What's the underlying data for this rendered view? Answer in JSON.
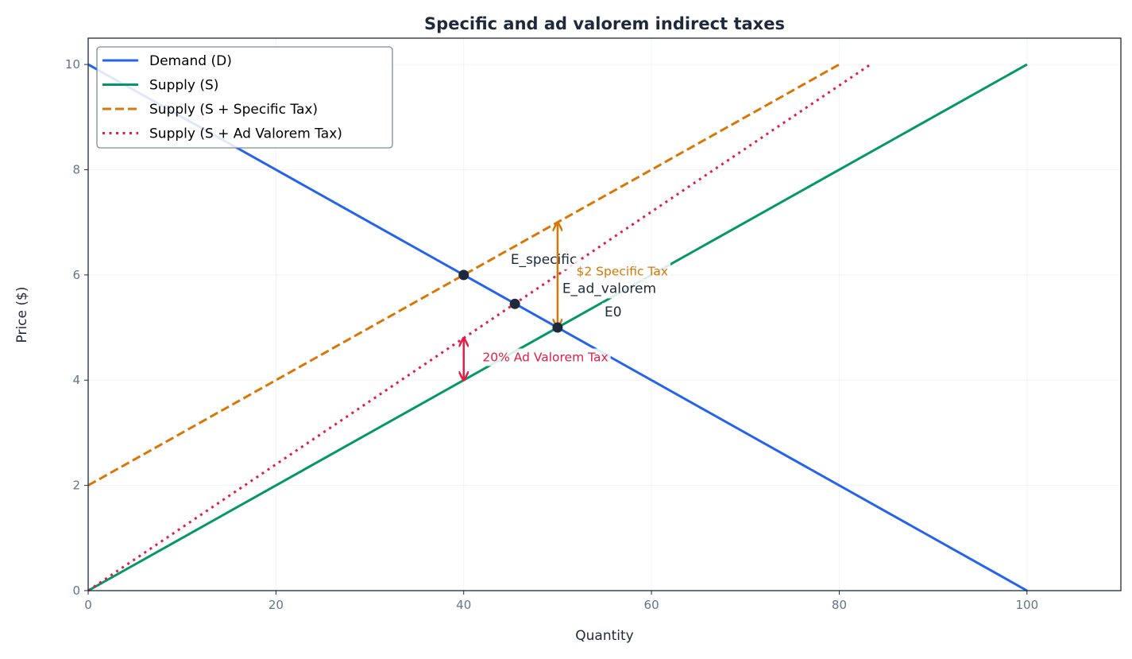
{
  "chart_data": {
    "type": "line",
    "title": "Specific and ad valorem indirect taxes",
    "xlabel": "Quantity",
    "ylabel": "Price ($)",
    "xlim": [
      0,
      110
    ],
    "ylim": [
      0,
      10.5
    ],
    "xticks": [
      0,
      20,
      40,
      60,
      80,
      100
    ],
    "yticks": [
      0,
      2,
      4,
      6,
      8,
      10
    ],
    "grid": true,
    "legend_position": "top-left",
    "series": [
      {
        "name": "Demand (D)",
        "color": "#2563eb",
        "style": "solid",
        "x": [
          0,
          100
        ],
        "y": [
          10,
          0
        ]
      },
      {
        "name": "Supply (S)",
        "color": "#059669",
        "style": "solid",
        "x": [
          0,
          100
        ],
        "y": [
          0,
          10
        ]
      },
      {
        "name": "Supply (S + Specific Tax)",
        "color": "#d97706",
        "style": "dashed",
        "x": [
          0,
          80
        ],
        "y": [
          2,
          10
        ]
      },
      {
        "name": "Supply (S + Ad Valorem Tax)",
        "color": "#e11d48",
        "style": "dotted",
        "x": [
          0,
          83.33
        ],
        "y": [
          0,
          10
        ]
      }
    ],
    "points": [
      {
        "label": "E_specific",
        "x": 40,
        "y": 6,
        "label_x": 45,
        "label_y": 6.3
      },
      {
        "label": "E_ad_valorem",
        "x": 45.45,
        "y": 5.45,
        "label_x": 50.5,
        "label_y": 5.75
      },
      {
        "label": "E0",
        "x": 50,
        "y": 5,
        "label_x": 55,
        "label_y": 5.3
      }
    ],
    "annotations": [
      {
        "text": "$2 Specific Tax",
        "color": "#d97706",
        "arrow_x": 50,
        "arrow_y": [
          5,
          7
        ],
        "text_x": 52,
        "text_y": 6.08
      },
      {
        "text": "20% Ad Valorem Tax",
        "color": "#e11d48",
        "arrow_x": 40,
        "arrow_y": [
          4,
          4.8
        ],
        "text_x": 42,
        "text_y": 4.45
      }
    ]
  }
}
